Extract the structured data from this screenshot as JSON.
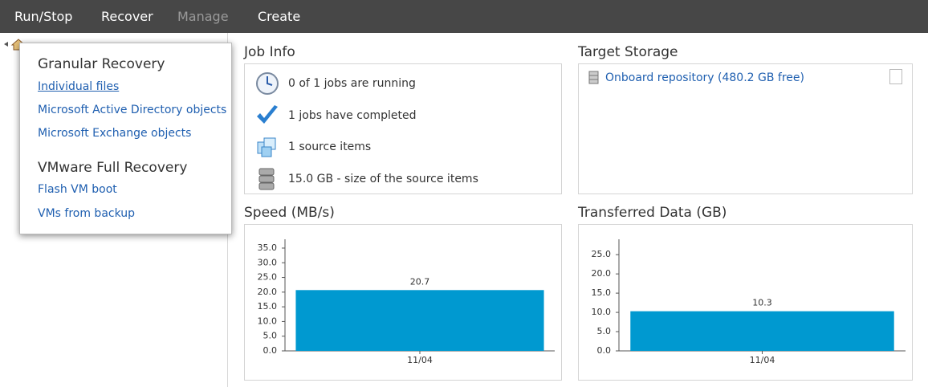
{
  "menu": [
    "Run/Stop",
    "Recover",
    "Manage",
    "Create"
  ],
  "dropdown": {
    "sections": [
      {
        "title": "Granular Recovery",
        "items": [
          "Individual files",
          "Microsoft Active Directory objects",
          "Microsoft Exchange objects"
        ]
      },
      {
        "title": "VMware Full Recovery",
        "items": [
          "Flash VM boot",
          "VMs from backup"
        ]
      }
    ]
  },
  "job_info": {
    "title": "Job Info",
    "rows": [
      "0 of 1 jobs are running",
      "1 jobs have completed",
      "1 source items",
      "15.0 GB - size of the source items"
    ]
  },
  "target_storage": {
    "title": "Target Storage",
    "items": [
      "Onboard repository (480.2 GB free)"
    ]
  },
  "chart_data": [
    {
      "type": "bar",
      "title": "Speed (MB/s)",
      "categories": [
        "11/04"
      ],
      "values": [
        20.7
      ],
      "color": "#0099d0",
      "ylim": [
        0,
        38
      ],
      "yticks": [
        {
          "value": 0,
          "label": "0.0"
        },
        {
          "value": 5,
          "label": "5.0"
        },
        {
          "value": 10,
          "label": "10.0"
        },
        {
          "value": 15,
          "label": "15.0"
        },
        {
          "value": 20,
          "label": "20.0"
        },
        {
          "value": 25,
          "label": "25.0"
        },
        {
          "value": 30,
          "label": "30.0"
        },
        {
          "value": 35,
          "label": "35.0"
        }
      ]
    },
    {
      "type": "bar",
      "title": "Transferred Data (GB)",
      "categories": [
        "11/04"
      ],
      "values": [
        10.3
      ],
      "color": "#0099d0",
      "ylim": [
        0,
        29
      ],
      "yticks": [
        {
          "value": 0,
          "label": "0.0"
        },
        {
          "value": 5,
          "label": "5.0"
        },
        {
          "value": 10,
          "label": "10.0"
        },
        {
          "value": 15,
          "label": "15.0"
        },
        {
          "value": 20,
          "label": "20.0"
        },
        {
          "value": 25,
          "label": "25.0"
        }
      ]
    }
  ]
}
